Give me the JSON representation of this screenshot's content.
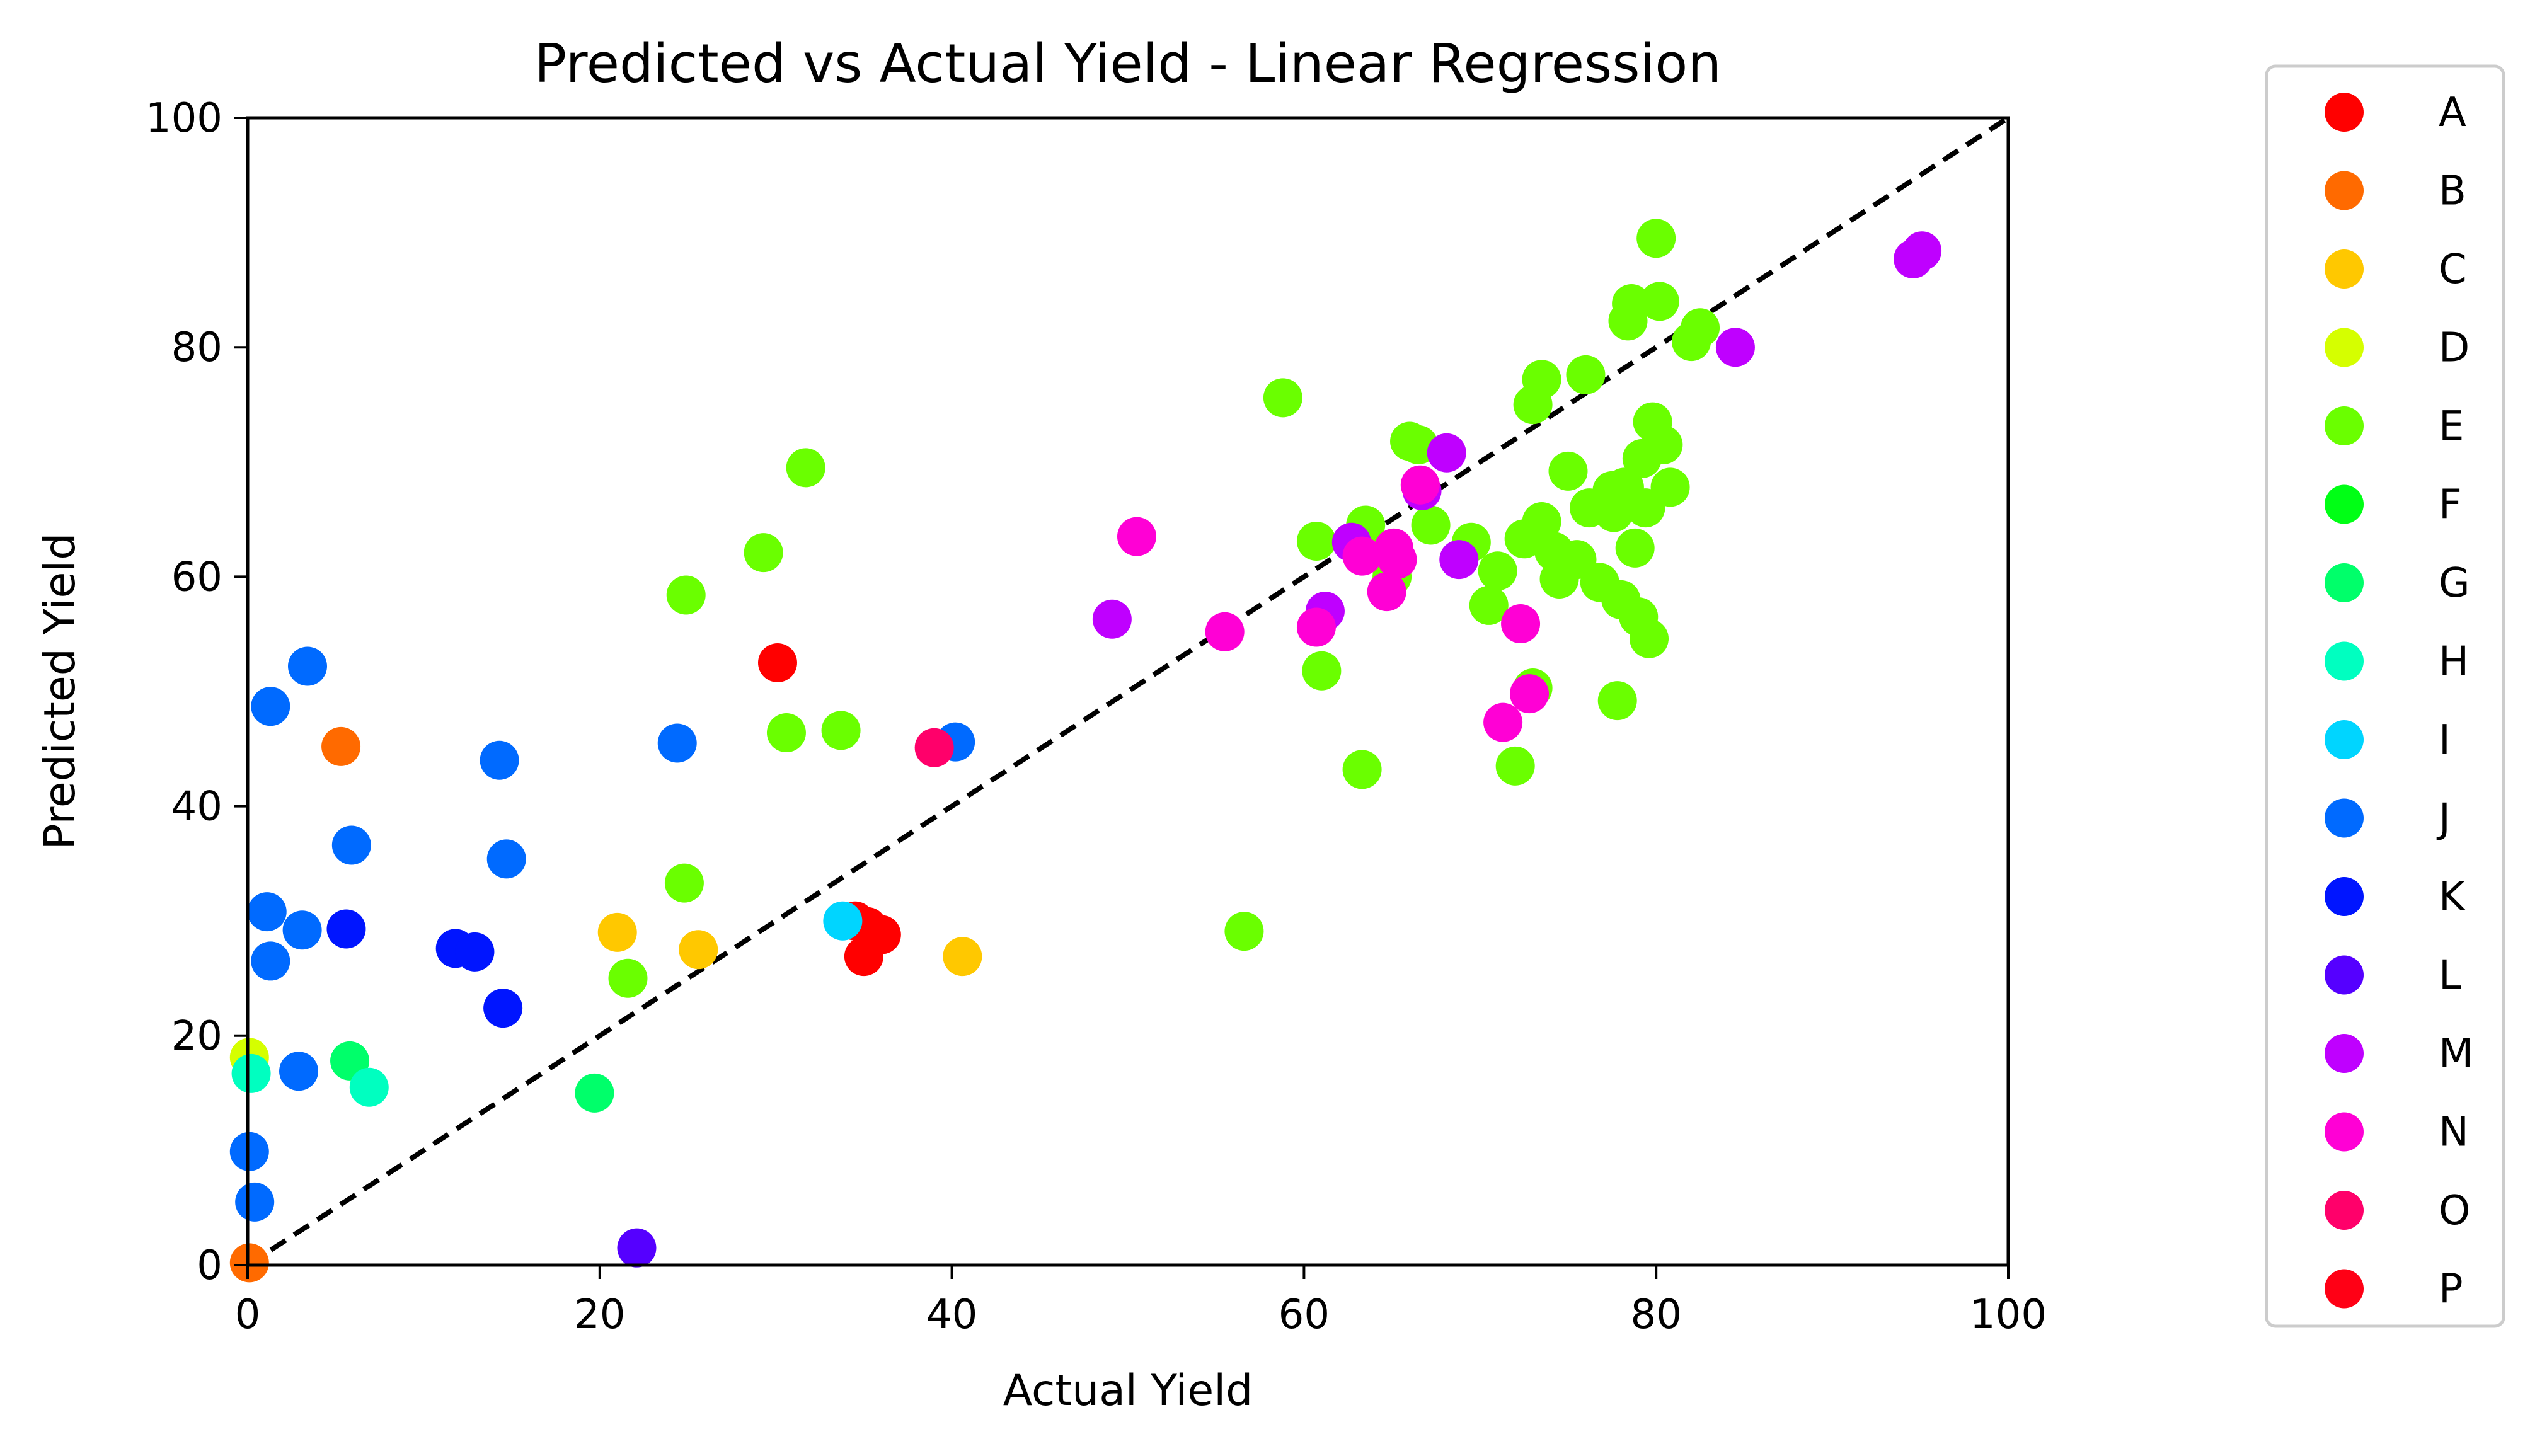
{
  "chart_data": {
    "type": "scatter",
    "title": "Predicted vs Actual Yield -  Linear Regression",
    "xlabel": "Actual Yield",
    "ylabel": "Predicted Yield",
    "xlim": [
      0,
      100
    ],
    "ylim": [
      0,
      100
    ],
    "xticks": [
      0,
      20,
      40,
      60,
      80,
      100
    ],
    "yticks": [
      0,
      20,
      40,
      60,
      80,
      100
    ],
    "grid": false,
    "legend_position": "outside-right",
    "reference_line": {
      "x": [
        0,
        100
      ],
      "y": [
        0,
        100
      ],
      "style": "dashed",
      "color": "#000000"
    },
    "series": [
      {
        "name": "A",
        "color": "#ff0000",
        "points": [
          [
            30.1,
            52.5
          ],
          [
            34.5,
            30.0
          ],
          [
            35.2,
            29.5
          ],
          [
            36.0,
            28.8
          ],
          [
            35.0,
            26.9
          ]
        ]
      },
      {
        "name": "B",
        "color": "#ff6a00",
        "points": [
          [
            5.3,
            45.2
          ],
          [
            0.1,
            0.2
          ]
        ]
      },
      {
        "name": "C",
        "color": "#ffc800",
        "points": [
          [
            21.0,
            29.0
          ],
          [
            25.6,
            27.5
          ],
          [
            40.6,
            26.9
          ]
        ]
      },
      {
        "name": "D",
        "color": "#d5ff00",
        "points": [
          [
            0.1,
            18.1
          ]
        ]
      },
      {
        "name": "E",
        "color": "#6aff00",
        "points": [
          [
            24.9,
            58.4
          ],
          [
            29.3,
            62.1
          ],
          [
            31.7,
            69.5
          ],
          [
            30.6,
            46.4
          ],
          [
            33.7,
            46.6
          ],
          [
            24.8,
            33.3
          ],
          [
            21.6,
            25.0
          ],
          [
            56.6,
            29.1
          ],
          [
            58.8,
            75.6
          ],
          [
            60.7,
            63.1
          ],
          [
            61.0,
            51.8
          ],
          [
            63.3,
            43.2
          ],
          [
            63.5,
            64.5
          ],
          [
            65.0,
            60.0
          ],
          [
            66.0,
            71.8
          ],
          [
            66.5,
            71.5
          ],
          [
            67.2,
            64.5
          ],
          [
            69.5,
            63.0
          ],
          [
            70.5,
            57.5
          ],
          [
            71.0,
            60.5
          ],
          [
            72.0,
            43.5
          ],
          [
            72.5,
            63.3
          ],
          [
            73.0,
            50.3
          ],
          [
            73.0,
            75.0
          ],
          [
            73.5,
            77.2
          ],
          [
            73.5,
            64.8
          ],
          [
            74.2,
            62.2
          ],
          [
            74.5,
            59.8
          ],
          [
            75.0,
            69.2
          ],
          [
            75.5,
            61.5
          ],
          [
            76.0,
            77.6
          ],
          [
            76.2,
            66.0
          ],
          [
            76.8,
            59.5
          ],
          [
            77.5,
            67.5
          ],
          [
            77.8,
            49.2
          ],
          [
            78.0,
            58.0
          ],
          [
            78.2,
            67.8
          ],
          [
            78.4,
            82.3
          ],
          [
            78.6,
            83.8
          ],
          [
            78.8,
            62.5
          ],
          [
            79.0,
            56.5
          ],
          [
            79.2,
            70.3
          ],
          [
            79.4,
            66.0
          ],
          [
            79.6,
            54.6
          ],
          [
            79.8,
            73.5
          ],
          [
            80.0,
            89.5
          ],
          [
            80.2,
            84.0
          ],
          [
            80.4,
            71.5
          ],
          [
            80.8,
            67.8
          ],
          [
            82.0,
            80.5
          ],
          [
            82.5,
            81.7
          ],
          [
            77.6,
            65.6
          ]
        ]
      },
      {
        "name": "F",
        "color": "#00ff15",
        "points": []
      },
      {
        "name": "G",
        "color": "#00ff6a",
        "points": [
          [
            5.8,
            17.8
          ],
          [
            19.7,
            15.0
          ]
        ]
      },
      {
        "name": "H",
        "color": "#00ffc0",
        "points": [
          [
            0.2,
            16.7
          ],
          [
            6.9,
            15.5
          ]
        ]
      },
      {
        "name": "I",
        "color": "#00d5ff",
        "points": [
          [
            33.8,
            30.0
          ]
        ]
      },
      {
        "name": "J",
        "color": "#006aff",
        "points": [
          [
            1.3,
            48.7
          ],
          [
            3.4,
            52.2
          ],
          [
            5.9,
            36.6
          ],
          [
            14.3,
            44.0
          ],
          [
            14.7,
            35.4
          ],
          [
            24.4,
            45.5
          ],
          [
            40.2,
            45.6
          ],
          [
            1.1,
            30.8
          ],
          [
            1.3,
            26.5
          ],
          [
            3.1,
            29.2
          ],
          [
            2.9,
            16.9
          ],
          [
            0.1,
            9.9
          ],
          [
            0.4,
            5.5
          ]
        ]
      },
      {
        "name": "K",
        "color": "#0015ff",
        "points": [
          [
            5.6,
            29.3
          ],
          [
            11.8,
            27.6
          ],
          [
            12.9,
            27.3
          ],
          [
            14.5,
            22.4
          ]
        ]
      },
      {
        "name": "L",
        "color": "#5500ff",
        "points": [
          [
            22.1,
            1.5
          ]
        ]
      },
      {
        "name": "M",
        "color": "#bf00ff",
        "points": [
          [
            49.1,
            56.3
          ],
          [
            61.2,
            57.0
          ],
          [
            62.7,
            63.0
          ],
          [
            66.7,
            67.5
          ],
          [
            68.1,
            70.8
          ],
          [
            68.8,
            61.5
          ],
          [
            84.5,
            80.0
          ],
          [
            94.6,
            87.7
          ],
          [
            95.1,
            88.4
          ]
        ]
      },
      {
        "name": "N",
        "color": "#ff00d5",
        "points": [
          [
            50.5,
            63.5
          ],
          [
            55.5,
            55.2
          ],
          [
            60.7,
            55.6
          ],
          [
            63.3,
            61.8
          ],
          [
            64.7,
            58.7
          ],
          [
            65.1,
            62.5
          ],
          [
            65.3,
            61.5
          ],
          [
            66.6,
            68.0
          ],
          [
            71.3,
            47.3
          ],
          [
            72.3,
            55.9
          ],
          [
            72.8,
            49.8
          ]
        ]
      },
      {
        "name": "O",
        "color": "#ff006a",
        "points": [
          [
            39.0,
            45.1
          ]
        ]
      },
      {
        "name": "P",
        "color": "#ff0015",
        "points": []
      }
    ]
  }
}
